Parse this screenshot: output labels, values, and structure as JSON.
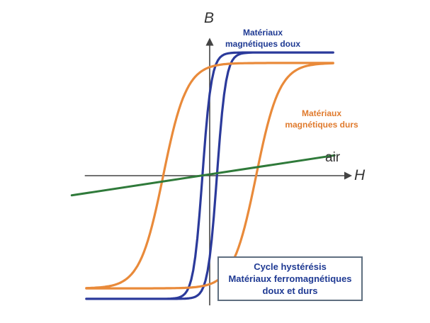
{
  "chart_data": {
    "type": "line",
    "xlabel": "H",
    "ylabel": "B",
    "xlim": [
      -10,
      10
    ],
    "ylim": [
      -10,
      10
    ],
    "grid": false,
    "legend": "none",
    "series": [
      {
        "name": "Matériaux magnétiques doux",
        "label_lines": [
          "Matériaux",
          "magnétiques doux"
        ],
        "color": "#2b3a9b",
        "kind": "loop",
        "coercivity": 0.5,
        "saturation": 9.4,
        "steepness": 1.6,
        "h_max": 8.5
      },
      {
        "name": "Matériaux magnétiques durs",
        "label_lines": [
          "Matériaux",
          "magnétiques durs"
        ],
        "color": "#e98a3a",
        "kind": "loop",
        "coercivity": 3.2,
        "saturation": 8.6,
        "steepness": 0.62,
        "h_max": 8.5
      },
      {
        "name": "air",
        "color": "#2f7a3a",
        "kind": "line",
        "x": [
          -9.5,
          8.6
        ],
        "y": [
          -1.5,
          1.55
        ]
      }
    ]
  },
  "caption": {
    "lines": [
      "Cycle hystérésis",
      "Matériaux ferromagnétiques",
      "doux et durs"
    ]
  }
}
